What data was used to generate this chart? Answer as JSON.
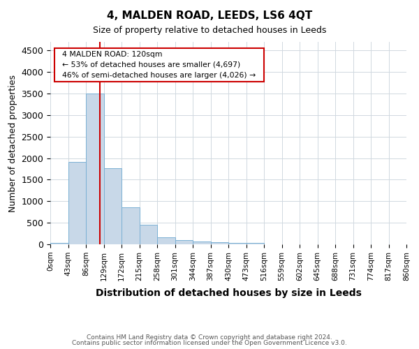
{
  "title": "4, MALDEN ROAD, LEEDS, LS6 4QT",
  "subtitle": "Size of property relative to detached houses in Leeds",
  "xlabel": "Distribution of detached houses by size in Leeds",
  "ylabel": "Number of detached properties",
  "footnote1": "Contains HM Land Registry data © Crown copyright and database right 2024.",
  "footnote2": "Contains public sector information licensed under the Open Government Licence v3.0.",
  "annotation_line1": "4 MALDEN ROAD: 120sqm",
  "annotation_line2": "← 53% of detached houses are smaller (4,697)",
  "annotation_line3": "46% of semi-detached houses are larger (4,026) →",
  "bar_color": "#c8d8e8",
  "bar_edge_color": "#7ab0d4",
  "grid_color": "#d0d8e0",
  "annotation_box_edge_color": "#cc0000",
  "vline_color": "#cc0000",
  "bin_edges": [
    "0sqm",
    "43sqm",
    "86sqm",
    "129sqm",
    "172sqm",
    "215sqm",
    "258sqm",
    "301sqm",
    "344sqm",
    "387sqm",
    "430sqm",
    "473sqm",
    "516sqm",
    "559sqm",
    "602sqm",
    "645sqm",
    "688sqm",
    "731sqm",
    "774sqm",
    "817sqm",
    "860sqm"
  ],
  "bar_heights": [
    40,
    1910,
    3500,
    1760,
    855,
    450,
    165,
    100,
    65,
    45,
    35,
    25,
    0,
    0,
    0,
    0,
    0,
    0,
    0,
    0
  ],
  "ylim": [
    0,
    4700
  ],
  "yticks": [
    0,
    500,
    1000,
    1500,
    2000,
    2500,
    3000,
    3500,
    4000,
    4500
  ],
  "vline_x": 2.79
}
